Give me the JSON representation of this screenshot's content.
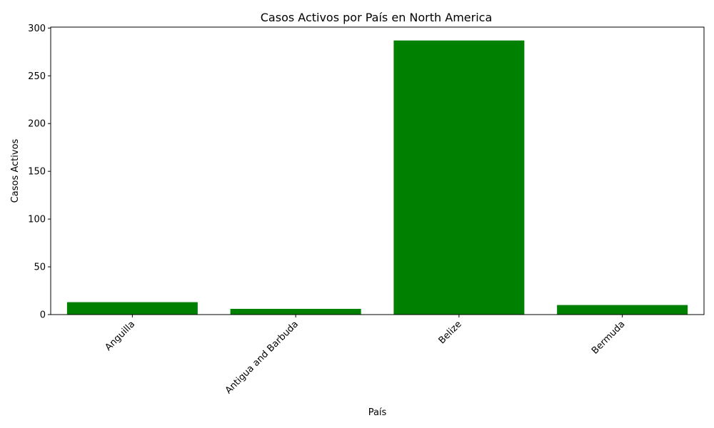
{
  "chart_data": {
    "type": "bar",
    "title": "Casos Activos por País en North America",
    "xlabel": "País",
    "ylabel": "Casos Activos",
    "categories": [
      "Anguilla",
      "Antigua and Barbuda",
      "Belize",
      "Bermuda"
    ],
    "values": [
      13,
      6,
      287,
      10
    ],
    "ylim": [
      0,
      301
    ],
    "yticks": [
      0,
      50,
      100,
      150,
      200,
      250,
      300
    ],
    "bar_color": "#008000",
    "grid": false,
    "legend": "none",
    "xtick_rotation": 45
  }
}
